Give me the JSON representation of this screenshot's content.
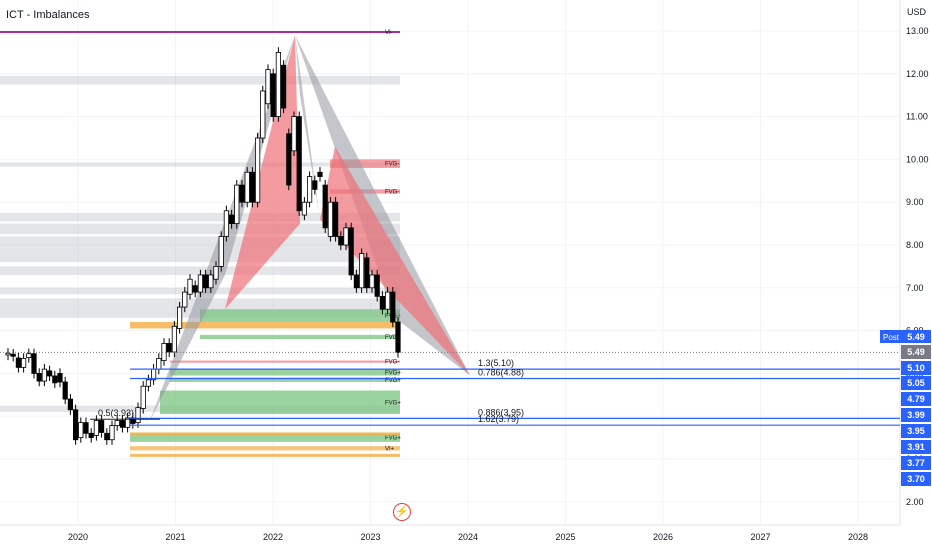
{
  "header": {
    "indicator_title": "ICT - Imbalances",
    "currency": "USD",
    "logo": "lightning-bolt-icon"
  },
  "colors": {
    "bullish_candle": "#ffffff",
    "bearish_candle": "#000000",
    "pattern_gray": "#9598a1",
    "pattern_red": "#f07078",
    "fvg_green": "#79c47f",
    "fvg_orange": "#f5b04b",
    "fvg_red": "#ef7f86",
    "vi_purple": "#9c3b8a",
    "level_blue": "#2962ff",
    "price_label_bg": "#2962ff",
    "last_price_bg": "#787b86"
  },
  "chart_data": {
    "type": "candlestick",
    "title": "ICT - Imbalances",
    "x_axis": {
      "labels": [
        "2020",
        "2021",
        "2022",
        "2023",
        "2024",
        "2025",
        "2026",
        "2027",
        "2028"
      ]
    },
    "y_axis": {
      "unit": "USD",
      "labels": [
        "2.00",
        "3.00",
        "4.00",
        "5.00",
        "6.00",
        "7.00",
        "8.00",
        "9.00",
        "10.00",
        "11.00",
        "12.00",
        "13.00"
      ],
      "range": [
        1.7,
        13.3
      ]
    },
    "candles_open_close": [
      [
        5.43,
        5.47
      ],
      [
        5.45,
        5.4
      ],
      [
        5.36,
        5.14
      ],
      [
        5.14,
        5.35
      ],
      [
        5.37,
        5.46
      ],
      [
        5.46,
        5.0
      ],
      [
        5.0,
        4.82
      ],
      [
        4.82,
        5.1
      ],
      [
        5.06,
        4.94
      ],
      [
        4.94,
        4.78
      ],
      [
        5.0,
        4.8
      ],
      [
        4.8,
        4.4
      ],
      [
        4.4,
        4.15
      ],
      [
        4.15,
        3.45
      ],
      [
        3.5,
        3.85
      ],
      [
        3.85,
        3.6
      ],
      [
        3.6,
        3.5
      ],
      [
        3.55,
        3.9
      ],
      [
        3.9,
        3.62
      ],
      [
        3.6,
        3.45
      ],
      [
        3.45,
        3.78
      ],
      [
        3.78,
        3.9
      ],
      [
        3.9,
        3.74
      ],
      [
        3.74,
        3.96
      ],
      [
        3.96,
        3.83
      ],
      [
        3.85,
        4.2
      ],
      [
        4.18,
        4.7
      ],
      [
        4.7,
        4.85
      ],
      [
        4.85,
        5.1
      ],
      [
        5.1,
        5.35
      ],
      [
        5.3,
        5.7
      ],
      [
        5.7,
        5.5
      ],
      [
        5.5,
        6.1
      ],
      [
        6.05,
        6.55
      ],
      [
        6.55,
        6.9
      ],
      [
        6.85,
        7.2
      ],
      [
        7.05,
        6.9
      ],
      [
        6.9,
        7.3
      ],
      [
        7.3,
        7.0
      ],
      [
        7.0,
        7.3
      ],
      [
        7.2,
        7.5
      ],
      [
        7.5,
        8.2
      ],
      [
        8.2,
        8.8
      ],
      [
        8.7,
        8.5
      ],
      [
        8.5,
        9.4
      ],
      [
        9.4,
        9.0
      ],
      [
        9.0,
        9.7
      ],
      [
        9.7,
        9.0
      ],
      [
        9.0,
        10.5
      ],
      [
        10.5,
        11.6
      ],
      [
        11.3,
        12.1
      ],
      [
        12.0,
        11.0
      ],
      [
        11.0,
        12.5
      ],
      [
        12.2,
        11.2
      ],
      [
        10.6,
        9.4
      ],
      [
        10.2,
        11.0
      ],
      [
        11.0,
        8.8
      ],
      [
        8.7,
        9.0
      ],
      [
        9.0,
        9.6
      ],
      [
        9.5,
        9.3
      ],
      [
        9.7,
        9.6
      ],
      [
        9.4,
        8.4
      ],
      [
        8.2,
        9.0
      ],
      [
        9.0,
        8.2
      ],
      [
        8.2,
        8.0
      ],
      [
        8.0,
        8.4
      ],
      [
        8.4,
        7.3
      ],
      [
        7.3,
        7.0
      ],
      [
        7.0,
        7.8
      ],
      [
        7.7,
        7.0
      ],
      [
        7.0,
        7.3
      ],
      [
        7.3,
        6.8
      ],
      [
        6.8,
        6.5
      ],
      [
        6.5,
        6.9
      ],
      [
        6.9,
        6.2
      ],
      [
        6.2,
        5.49
      ]
    ],
    "fvg_zones": [
      {
        "label": "FVG-",
        "type": "bearish",
        "low": 9.8,
        "high": 10.0
      },
      {
        "label": "FVG-",
        "type": "bearish",
        "low": 9.2,
        "high": 9.3
      },
      {
        "label": "FVG+",
        "type": "bullish",
        "low": 6.2,
        "high": 6.5
      },
      {
        "label": "FVG+",
        "type": "bullish",
        "low": 5.8,
        "high": 5.9
      },
      {
        "label": "FVG-",
        "type": "bearish",
        "low": 5.25,
        "high": 5.3
      },
      {
        "label": "FVG+",
        "type": "bullish",
        "low": 4.95,
        "high": 5.1
      },
      {
        "label": "FVG+",
        "type": "bullish",
        "low": 4.8,
        "high": 4.9
      },
      {
        "label": "FVG+",
        "type": "bullish",
        "low": 4.05,
        "high": 4.6
      },
      {
        "label": "FVG+",
        "type": "bullish",
        "low": 3.4,
        "high": 3.6
      },
      {
        "label": "VI+",
        "type": "bullish",
        "low": 3.2,
        "high": 3.3
      },
      {
        "label": "VI-",
        "type": "bearish",
        "low": 12.95,
        "high": 13.0
      }
    ],
    "fib_levels": [
      {
        "label": "1.3(5.10)",
        "value": 5.1
      },
      {
        "label": "0.786(4.88)",
        "value": 4.88
      },
      {
        "label": "0.886(3.95)",
        "value": 3.95
      },
      {
        "label": "1.62(3.79)",
        "value": 3.79
      },
      {
        "label": "0.5(3.93)",
        "value": 3.93
      }
    ],
    "price_labels": [
      {
        "text": "5.49",
        "value": 5.49,
        "kind": "last"
      },
      {
        "text": "5.10",
        "value": 5.1
      },
      {
        "text": "5.05",
        "value": 5.05
      },
      {
        "text": "4.79",
        "value": 4.79
      },
      {
        "text": "3.99",
        "value": 3.99
      },
      {
        "text": "3.95",
        "value": 3.95
      },
      {
        "text": "3.91",
        "value": 3.91
      },
      {
        "text": "3.77",
        "value": 3.77
      },
      {
        "text": "3.70",
        "value": 3.7
      }
    ],
    "post_label": {
      "text": "Post",
      "value": "5.49"
    },
    "grid": true,
    "legend": "none"
  }
}
